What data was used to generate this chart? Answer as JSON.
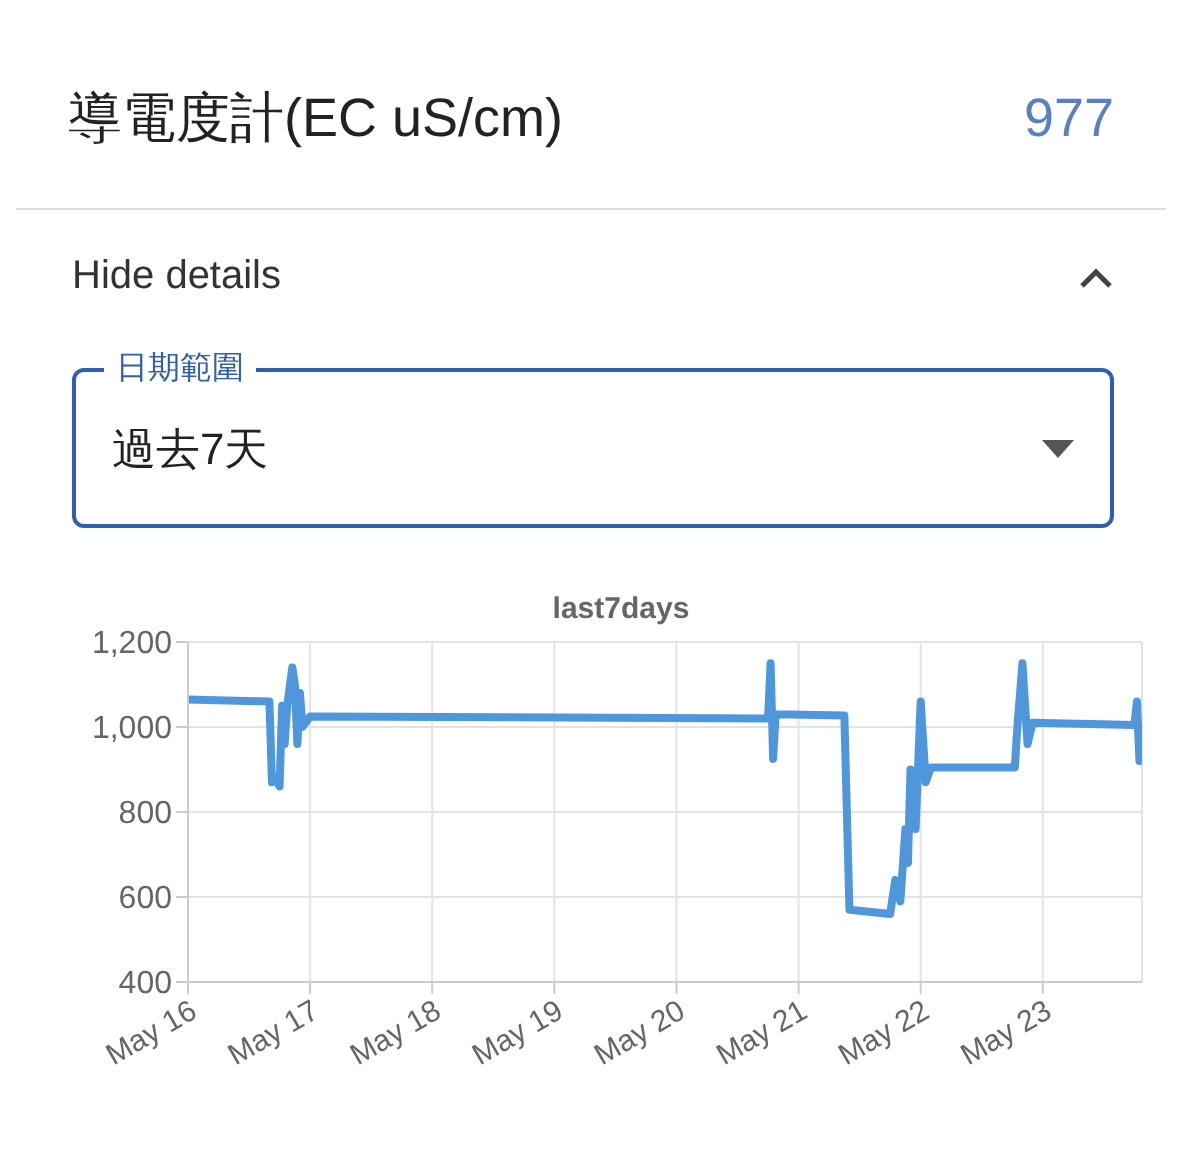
{
  "chart_data": [
    {
      "type": "other",
      "title": "導電度計(EC uS/cm)",
      "annotations": [
        "977",
        "Hide details",
        "日期範圍",
        "過去7天"
      ]
    },
    {
      "type": "line",
      "title": "last7days",
      "grid": true,
      "legend": false,
      "marker": "none",
      "line_style": "solid",
      "x": [
        "--05-16T00:00",
        "--05-16T16:00",
        "--05-16T16:30",
        "--05-16T17:00",
        "--05-16T18:00",
        "--05-16T18:30",
        "--05-16T19:00",
        "--05-16T19:30",
        "--05-16T20:30",
        "--05-16T21:00",
        "--05-16T21:30",
        "--05-16T22:00",
        "--05-16T22:30",
        "--05-17T00:00",
        "--05-20T18:00",
        "--05-20T18:30",
        "--05-20T19:00",
        "--05-20T19:30",
        "--05-21T09:00",
        "--05-21T10:00",
        "--05-21T18:00",
        "--05-21T19:00",
        "--05-21T20:00",
        "--05-21T21:00",
        "--05-21T21:30",
        "--05-21T22:00",
        "--05-21T23:00",
        "--05-22T00:00",
        "--05-22T01:00",
        "--05-22T02:00",
        "--05-22T18:30",
        "--05-22T19:00",
        "--05-22T20:00",
        "--05-22T21:00",
        "--05-22T22:00",
        "--05-23T18:00",
        "--05-23T18:30",
        "--05-23T19:00",
        "--05-23T19:30"
      ],
      "series": [
        {
          "color": "#4f97dc",
          "values": [
            1065,
            1060,
            870,
            880,
            860,
            1050,
            960,
            1050,
            1140,
            1100,
            960,
            1080,
            1000,
            1025,
            1020,
            1150,
            925,
            1030,
            1027,
            570,
            560,
            640,
            590,
            760,
            680,
            900,
            760,
            1060,
            870,
            905,
            905,
            1000,
            1150,
            960,
            1010,
            1005,
            1060,
            920,
            950
          ]
        }
      ],
      "xlim": [
        "--05-16T00:00",
        "--05-23T19:30"
      ],
      "xticks": [
        {
          "value": "--05-16",
          "label": "May 16"
        },
        {
          "value": "--05-17",
          "label": "May 17"
        },
        {
          "value": "--05-18",
          "label": "May 18"
        },
        {
          "value": "--05-19",
          "label": "May 19"
        },
        {
          "value": "--05-20",
          "label": "May 20"
        },
        {
          "value": "--05-21",
          "label": "May 21"
        },
        {
          "value": "--05-22",
          "label": "May 22"
        },
        {
          "value": "--05-23",
          "label": "May 23"
        }
      ],
      "ylim": [
        400,
        1200
      ],
      "yticks": [
        {
          "value": 400,
          "label": "400"
        },
        {
          "value": 600,
          "label": "600"
        },
        {
          "value": 800,
          "label": "800"
        },
        {
          "value": 1000,
          "label": "1,000"
        },
        {
          "value": 1200,
          "label": "1,200"
        }
      ]
    }
  ]
}
